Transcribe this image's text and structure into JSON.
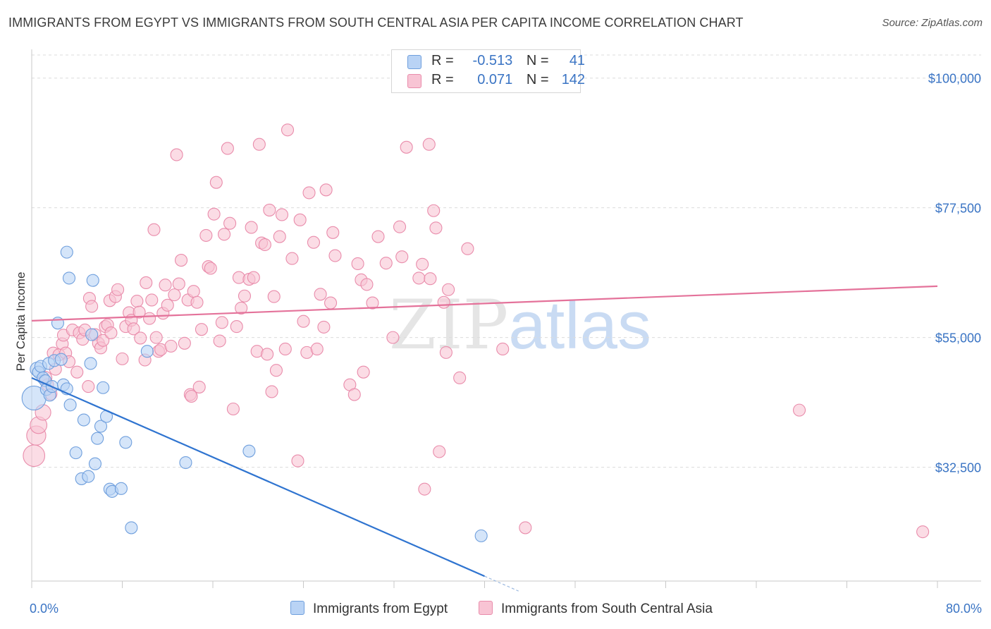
{
  "title": "IMMIGRANTS FROM EGYPT VS IMMIGRANTS FROM SOUTH CENTRAL ASIA PER CAPITA INCOME CORRELATION CHART",
  "source": "Source: ZipAtlas.com",
  "watermark": {
    "zip": "ZIP",
    "atlas": "atlas"
  },
  "legend": {
    "rows": [
      {
        "r_label": "R =",
        "r_value": "-0.513",
        "n_label": "N =",
        "n_value": "41"
      },
      {
        "r_label": "R =",
        "r_value": "0.071",
        "n_label": "N =",
        "n_value": "142"
      }
    ]
  },
  "bottom_legend": {
    "egypt": "Immigrants from Egypt",
    "asia": "Immigrants from South Central Asia"
  },
  "colors": {
    "egypt_fill": "#b9d3f5",
    "egypt_stroke": "#6f9fdd",
    "egypt_line": "#2f74d0",
    "asia_fill": "#f8c4d4",
    "asia_stroke": "#e98cab",
    "asia_line": "#e4729a",
    "grid": "#dcdcdc",
    "tick_text": "#3a74c4"
  },
  "chart_data": {
    "type": "scatter",
    "title": "IMMIGRANTS FROM EGYPT VS IMMIGRANTS FROM SOUTH CENTRAL ASIA PER CAPITA INCOME CORRELATION CHART",
    "xlabel": "",
    "ylabel": "Per Capita Income",
    "xlim": [
      0,
      80
    ],
    "ylim": [
      13000,
      104000
    ],
    "x_tick_labels": [
      "0.0%",
      "80.0%"
    ],
    "y_ticks": [
      {
        "value": 100000,
        "label": "$100,000"
      },
      {
        "value": 77500,
        "label": "$77,500"
      },
      {
        "value": 55000,
        "label": "$55,000"
      },
      {
        "value": 32500,
        "label": "$32,500"
      }
    ],
    "series": [
      {
        "name": "Immigrants from Egypt",
        "r": -0.513,
        "n": 41,
        "trend": {
          "x1": 0,
          "y1": 48000,
          "x2": 40,
          "y2": 13600,
          "dash_to_x": 43
        },
        "points": [
          [
            0.2,
            44500,
            2.0
          ],
          [
            0.5,
            49500,
            1.2
          ],
          [
            0.6,
            49000,
            1.0
          ],
          [
            0.8,
            50000,
            1.0
          ],
          [
            1.0,
            48000,
            1.0
          ],
          [
            1.2,
            47500,
            1.0
          ],
          [
            1.3,
            46000,
            1.0
          ],
          [
            1.5,
            50500,
            1.0
          ],
          [
            1.6,
            45000,
            1.0
          ],
          [
            1.8,
            46500,
            1.0
          ],
          [
            2.0,
            51000,
            1.0
          ],
          [
            2.3,
            57500,
            1.0
          ],
          [
            2.6,
            51200,
            1.0
          ],
          [
            2.8,
            46800,
            1.0
          ],
          [
            3.1,
            46100,
            1.0
          ],
          [
            3.1,
            69800,
            1.0
          ],
          [
            3.3,
            65300,
            1.0
          ],
          [
            3.4,
            43300,
            1.0
          ],
          [
            3.9,
            35000,
            1.0
          ],
          [
            4.4,
            30500,
            1.0
          ],
          [
            4.6,
            40700,
            1.0
          ],
          [
            5.0,
            30900,
            1.0
          ],
          [
            5.2,
            50500,
            1.0
          ],
          [
            5.3,
            55500,
            1.0
          ],
          [
            5.4,
            64900,
            1.0
          ],
          [
            5.6,
            33100,
            1.0
          ],
          [
            5.8,
            37500,
            1.0
          ],
          [
            6.1,
            39600,
            1.0
          ],
          [
            6.3,
            46300,
            1.0
          ],
          [
            6.6,
            41300,
            1.0
          ],
          [
            6.9,
            28700,
            1.0
          ],
          [
            7.1,
            28300,
            1.0
          ],
          [
            7.9,
            28800,
            1.0
          ],
          [
            8.3,
            36800,
            1.0
          ],
          [
            8.8,
            22000,
            1.0
          ],
          [
            10.2,
            52600,
            1.0
          ],
          [
            13.6,
            33300,
            1.0
          ],
          [
            19.2,
            35300,
            1.0
          ],
          [
            39.7,
            20600,
            1.0
          ]
        ]
      },
      {
        "name": "Immigrants from South Central Asia",
        "r": 0.071,
        "n": 142,
        "trend": {
          "x1": 0,
          "y1": 57900,
          "x2": 80,
          "y2": 63900
        },
        "points": [
          [
            0.2,
            34500,
            1.8
          ],
          [
            0.4,
            38000,
            1.6
          ],
          [
            0.6,
            39800,
            1.4
          ],
          [
            1.0,
            42000,
            1.3
          ],
          [
            1.2,
            48000,
            1.1
          ],
          [
            1.4,
            46800,
            1.0
          ],
          [
            1.7,
            45200,
            1.0
          ],
          [
            1.9,
            52300,
            1.0
          ],
          [
            2.1,
            49500,
            1.0
          ],
          [
            2.4,
            52000,
            1.0
          ],
          [
            2.7,
            53900,
            1.0
          ],
          [
            2.8,
            55400,
            1.0
          ],
          [
            3.0,
            52300,
            1.0
          ],
          [
            3.3,
            50800,
            1.0
          ],
          [
            3.6,
            56300,
            1.0
          ],
          [
            4.0,
            49000,
            1.0
          ],
          [
            4.2,
            55800,
            1.0
          ],
          [
            4.5,
            54700,
            1.0
          ],
          [
            4.7,
            56300,
            1.0
          ],
          [
            5.0,
            46500,
            1.0
          ],
          [
            5.1,
            61800,
            1.0
          ],
          [
            5.3,
            60400,
            1.0
          ],
          [
            5.6,
            55500,
            1.0
          ],
          [
            5.9,
            54000,
            1.0
          ],
          [
            6.1,
            53200,
            1.0
          ],
          [
            6.3,
            54500,
            1.0
          ],
          [
            6.5,
            56900,
            1.0
          ],
          [
            6.7,
            57200,
            1.0
          ],
          [
            6.9,
            61400,
            1.0
          ],
          [
            7.0,
            55800,
            1.0
          ],
          [
            7.4,
            62100,
            1.0
          ],
          [
            7.6,
            63300,
            1.0
          ],
          [
            8.0,
            51300,
            1.0
          ],
          [
            8.3,
            56900,
            1.0
          ],
          [
            8.6,
            59300,
            1.0
          ],
          [
            8.8,
            58000,
            1.0
          ],
          [
            9.0,
            56500,
            1.0
          ],
          [
            9.3,
            61300,
            1.0
          ],
          [
            9.5,
            59400,
            1.0
          ],
          [
            9.6,
            54900,
            1.0
          ],
          [
            10.0,
            51100,
            1.0
          ],
          [
            10.1,
            64500,
            1.0
          ],
          [
            10.4,
            58300,
            1.0
          ],
          [
            10.6,
            61500,
            1.0
          ],
          [
            10.8,
            73700,
            1.0
          ],
          [
            11.0,
            55000,
            1.0
          ],
          [
            11.2,
            52600,
            1.0
          ],
          [
            11.4,
            52900,
            1.0
          ],
          [
            11.6,
            59200,
            1.0
          ],
          [
            11.8,
            64100,
            1.0
          ],
          [
            12.0,
            60600,
            1.0
          ],
          [
            12.3,
            53500,
            1.0
          ],
          [
            12.6,
            62400,
            1.0
          ],
          [
            12.8,
            86700,
            1.0
          ],
          [
            13.0,
            64300,
            1.0
          ],
          [
            13.2,
            68400,
            1.0
          ],
          [
            13.5,
            54000,
            1.0
          ],
          [
            13.8,
            61500,
            1.0
          ],
          [
            14.0,
            45100,
            1.0
          ],
          [
            14.1,
            44800,
            1.0
          ],
          [
            14.3,
            63000,
            1.0
          ],
          [
            14.6,
            61100,
            1.0
          ],
          [
            14.8,
            46400,
            1.0
          ],
          [
            15.0,
            56400,
            1.0
          ],
          [
            15.4,
            72700,
            1.0
          ],
          [
            15.6,
            67300,
            1.0
          ],
          [
            15.8,
            67000,
            1.0
          ],
          [
            16.1,
            76400,
            1.0
          ],
          [
            16.3,
            81900,
            1.0
          ],
          [
            16.6,
            54400,
            1.0
          ],
          [
            16.8,
            57600,
            1.0
          ],
          [
            17.0,
            72900,
            1.0
          ],
          [
            17.3,
            87800,
            1.0
          ],
          [
            17.5,
            74800,
            1.0
          ],
          [
            17.8,
            42600,
            1.0
          ],
          [
            18.1,
            56900,
            1.0
          ],
          [
            18.3,
            65400,
            1.0
          ],
          [
            18.5,
            60100,
            1.0
          ],
          [
            18.8,
            62200,
            1.0
          ],
          [
            19.2,
            65100,
            1.0
          ],
          [
            19.4,
            74100,
            1.0
          ],
          [
            19.6,
            65400,
            1.0
          ],
          [
            19.9,
            52600,
            1.0
          ],
          [
            20.1,
            88500,
            1.0
          ],
          [
            20.3,
            71400,
            1.0
          ],
          [
            20.6,
            71100,
            1.0
          ],
          [
            20.8,
            52100,
            1.0
          ],
          [
            21.0,
            77100,
            1.0
          ],
          [
            21.2,
            45600,
            1.0
          ],
          [
            21.4,
            62100,
            1.0
          ],
          [
            21.6,
            49300,
            1.0
          ],
          [
            21.9,
            72500,
            1.0
          ],
          [
            22.1,
            76300,
            1.0
          ],
          [
            22.4,
            53000,
            1.0
          ],
          [
            22.6,
            91000,
            1.0
          ],
          [
            23.0,
            68700,
            1.0
          ],
          [
            23.5,
            33600,
            1.0
          ],
          [
            23.7,
            75400,
            1.0
          ],
          [
            24.0,
            57800,
            1.0
          ],
          [
            24.3,
            52400,
            1.0
          ],
          [
            24.5,
            80100,
            1.0
          ],
          [
            24.9,
            71500,
            1.0
          ],
          [
            25.2,
            53000,
            1.0
          ],
          [
            25.5,
            62500,
            1.0
          ],
          [
            25.8,
            56800,
            1.0
          ],
          [
            26.0,
            80600,
            1.0
          ],
          [
            26.4,
            61000,
            1.0
          ],
          [
            26.6,
            73200,
            1.0
          ],
          [
            26.8,
            69200,
            1.0
          ],
          [
            28.1,
            46800,
            1.0
          ],
          [
            28.5,
            45100,
            1.0
          ],
          [
            28.8,
            67800,
            1.0
          ],
          [
            29.1,
            65000,
            1.0
          ],
          [
            29.3,
            49000,
            1.0
          ],
          [
            29.6,
            64200,
            1.0
          ],
          [
            30.1,
            61000,
            1.0
          ],
          [
            30.6,
            72500,
            1.0
          ],
          [
            31.3,
            67900,
            1.0
          ],
          [
            31.9,
            55000,
            1.0
          ],
          [
            32.5,
            74200,
            1.0
          ],
          [
            32.7,
            69000,
            1.0
          ],
          [
            33.1,
            88000,
            1.0
          ],
          [
            34.2,
            65300,
            1.0
          ],
          [
            34.5,
            67700,
            1.0
          ],
          [
            34.7,
            28700,
            1.0
          ],
          [
            35.1,
            88500,
            1.0
          ],
          [
            35.2,
            65200,
            1.0
          ],
          [
            35.5,
            77000,
            1.0
          ],
          [
            35.7,
            74000,
            1.0
          ],
          [
            36.0,
            35200,
            1.0
          ],
          [
            36.4,
            61100,
            1.0
          ],
          [
            36.6,
            52400,
            1.0
          ],
          [
            36.8,
            63300,
            1.0
          ],
          [
            37.8,
            48000,
            1.0
          ],
          [
            38.5,
            70400,
            1.0
          ],
          [
            41.6,
            53000,
            1.0
          ],
          [
            43.6,
            22000,
            1.0
          ],
          [
            67.8,
            42400,
            1.0
          ],
          [
            78.7,
            21300,
            1.0
          ]
        ]
      }
    ]
  }
}
